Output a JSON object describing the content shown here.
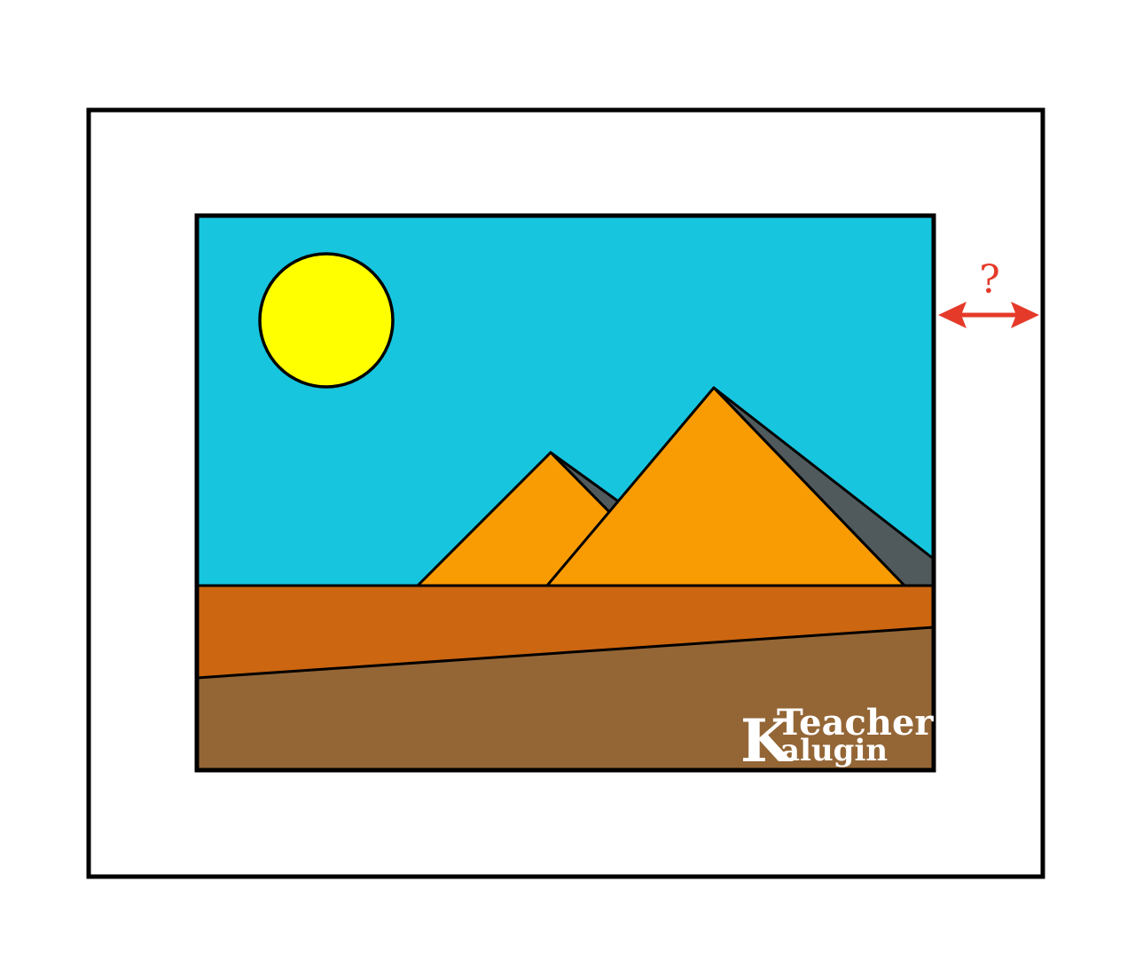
{
  "colors": {
    "outline": "#000000",
    "mat": "#ffffff",
    "sky": "#17c5df",
    "sun": "#ffff00",
    "pyramid_face": "#f99b03",
    "pyramid_shadow": "#505a5c",
    "sand_far": "#cc6610",
    "sand_near": "#946636",
    "arrow": "#e53a2a",
    "watermark": "#ffffff"
  },
  "diagram": {
    "question_mark": "?",
    "arrow_icon": "double-headed-arrow-icon"
  },
  "watermark": {
    "letter_k": "K",
    "line1": "Teacher",
    "line2": "alugin"
  }
}
